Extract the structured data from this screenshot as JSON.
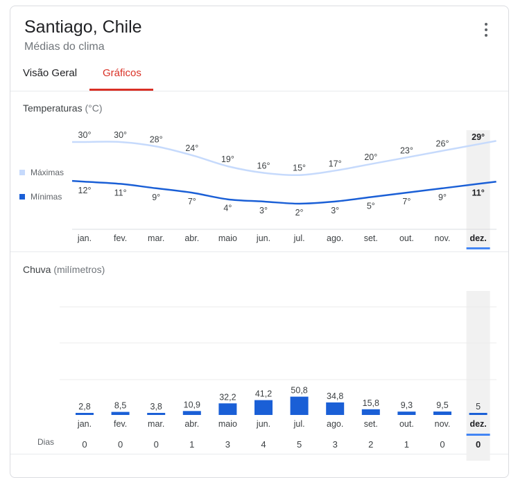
{
  "header": {
    "title": "Santiago, Chile",
    "subtitle": "Médias do clima",
    "menu_icon": "more-vert-icon"
  },
  "tabs": [
    {
      "label": "Visão Geral",
      "active": false
    },
    {
      "label": "Gráficos",
      "active": true
    }
  ],
  "colors": {
    "max_line": "#c6dafc",
    "min_line": "#1a5fd6",
    "bar": "#1a5fd6",
    "tab_active": "#d93025",
    "selected_bg": "#f1f1f1",
    "selected_marker": "#4285f4"
  },
  "temperature": {
    "title": "Temperaturas",
    "unit": "(°C)"
  },
  "rain": {
    "title": "Chuva",
    "unit": "(milímetros)",
    "days_label": "Dias"
  },
  "chart_data": [
    {
      "type": "line",
      "title": "Temperaturas (°C)",
      "categories": [
        "jan.",
        "fev.",
        "mar.",
        "abr.",
        "maio",
        "jun.",
        "jul.",
        "ago.",
        "set.",
        "out.",
        "nov.",
        "dez."
      ],
      "series": [
        {
          "name": "Máximas",
          "values": [
            30,
            30,
            28,
            24,
            19,
            16,
            15,
            17,
            20,
            23,
            26,
            29
          ],
          "labels": [
            "30°",
            "30°",
            "28°",
            "24°",
            "19°",
            "16°",
            "15°",
            "17°",
            "20°",
            "23°",
            "26°",
            "29°"
          ]
        },
        {
          "name": "Mínimas",
          "values": [
            12,
            11,
            9,
            7,
            4,
            3,
            2,
            3,
            5,
            7,
            9,
            11
          ],
          "labels": [
            "12°",
            "11°",
            "9°",
            "7°",
            "4°",
            "3°",
            "2°",
            "3°",
            "5°",
            "7°",
            "9°",
            "11°"
          ]
        }
      ],
      "selected": "dez.",
      "legend_position": "left"
    },
    {
      "type": "bar",
      "title": "Chuva (milímetros)",
      "categories": [
        "jan.",
        "fev.",
        "mar.",
        "abr.",
        "maio",
        "jun.",
        "jul.",
        "ago.",
        "set.",
        "out.",
        "nov.",
        "dez."
      ],
      "values": [
        2.8,
        8.5,
        3.8,
        10.9,
        32.2,
        41.2,
        50.8,
        34.8,
        15.8,
        9.3,
        9.5,
        5
      ],
      "value_labels": [
        "2,8",
        "8,5",
        "3,8",
        "10,9",
        "32,2",
        "41,2",
        "50,8",
        "34,8",
        "15,8",
        "9,3",
        "9,5",
        "5"
      ],
      "days": [
        "0",
        "0",
        "0",
        "1",
        "3",
        "4",
        "5",
        "3",
        "2",
        "1",
        "0",
        "0"
      ],
      "selected": "dez.",
      "grid": true
    }
  ]
}
